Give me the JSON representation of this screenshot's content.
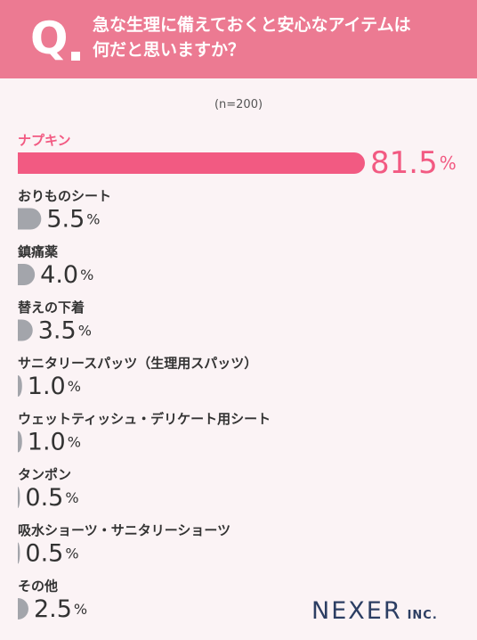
{
  "header": {
    "q_mark": "Q",
    "question_line1": "急な生理に備えておくと安心なアイテムは",
    "question_line2": "何だと思いますか？"
  },
  "sample_note": "(n=200)",
  "logo": {
    "main": "NEXER",
    "sub": "INC."
  },
  "colors": {
    "highlight": "#f25a82",
    "bar": "#a3a5ab",
    "header": "#ec7a92"
  },
  "chart_data": {
    "type": "bar",
    "orientation": "horizontal",
    "unit": "%",
    "categories": [
      "ナプキン",
      "おりものシート",
      "鎮痛薬",
      "替えの下着",
      "サニタリースパッツ（生理用スパッツ）",
      "ウェットティッシュ・デリケート用シート",
      "タンポン",
      "吸水ショーツ・サニタリーショーツ",
      "その他"
    ],
    "values": [
      81.5,
      5.5,
      4.0,
      3.5,
      1.0,
      1.0,
      0.5,
      0.5,
      2.5
    ],
    "value_labels": [
      "81.5",
      "5.5",
      "4.0",
      "3.5",
      "1.0",
      "1.0",
      "0.5",
      "0.5",
      "2.5"
    ],
    "xlim": [
      0,
      81.5
    ]
  }
}
